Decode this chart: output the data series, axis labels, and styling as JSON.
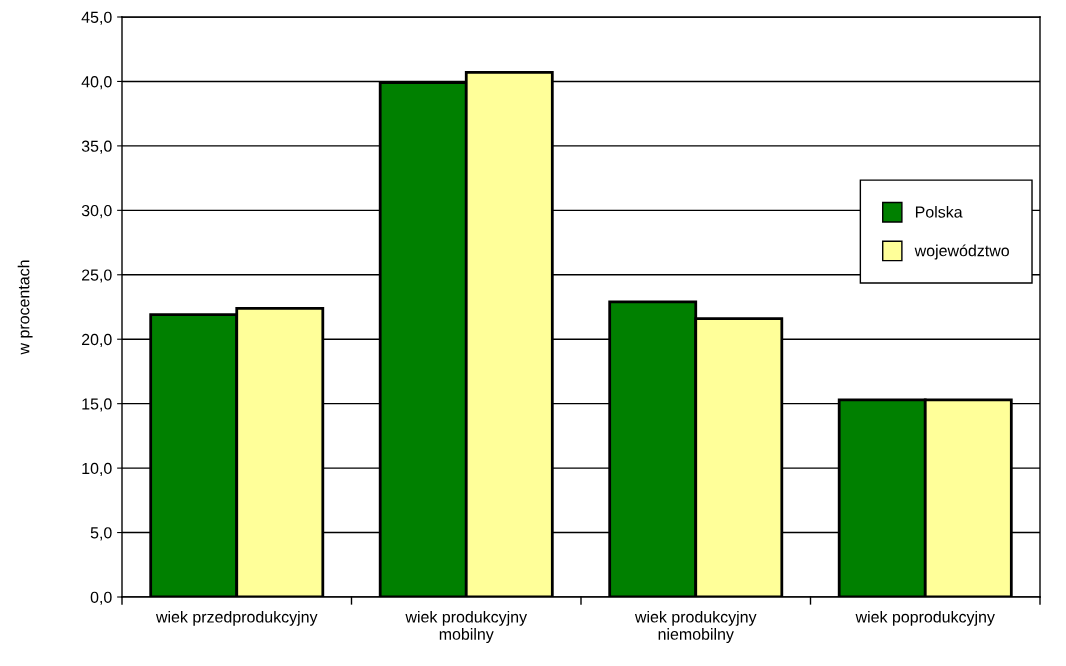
{
  "chart_data": {
    "type": "bar",
    "ylabel": "w procentach",
    "categories": [
      "wiek przedprodukcyjny",
      "wiek produkcyjny\nmobilny",
      "wiek produkcyjny\nniemobilny",
      "wiek poprodukcyjny"
    ],
    "series": [
      {
        "name": "Polska",
        "color": "#008000",
        "values": [
          21.9,
          39.9,
          22.9,
          15.3
        ]
      },
      {
        "name": "województwo",
        "color": "#ffff99",
        "values": [
          22.4,
          40.7,
          21.6,
          15.3
        ]
      }
    ],
    "ylim": [
      0,
      45
    ],
    "yticks": [
      {
        "value": 0,
        "label": "0,0"
      },
      {
        "value": 5,
        "label": "5,0"
      },
      {
        "value": 10,
        "label": "10,0"
      },
      {
        "value": 15,
        "label": "15,0"
      },
      {
        "value": 20,
        "label": "20,0"
      },
      {
        "value": 25,
        "label": "25,0"
      },
      {
        "value": 30,
        "label": "30,0"
      },
      {
        "value": 35,
        "label": "35,0"
      },
      {
        "value": 40,
        "label": "40,0"
      },
      {
        "value": 45,
        "label": "45,0"
      }
    ],
    "grid": "y",
    "legend": "right"
  }
}
